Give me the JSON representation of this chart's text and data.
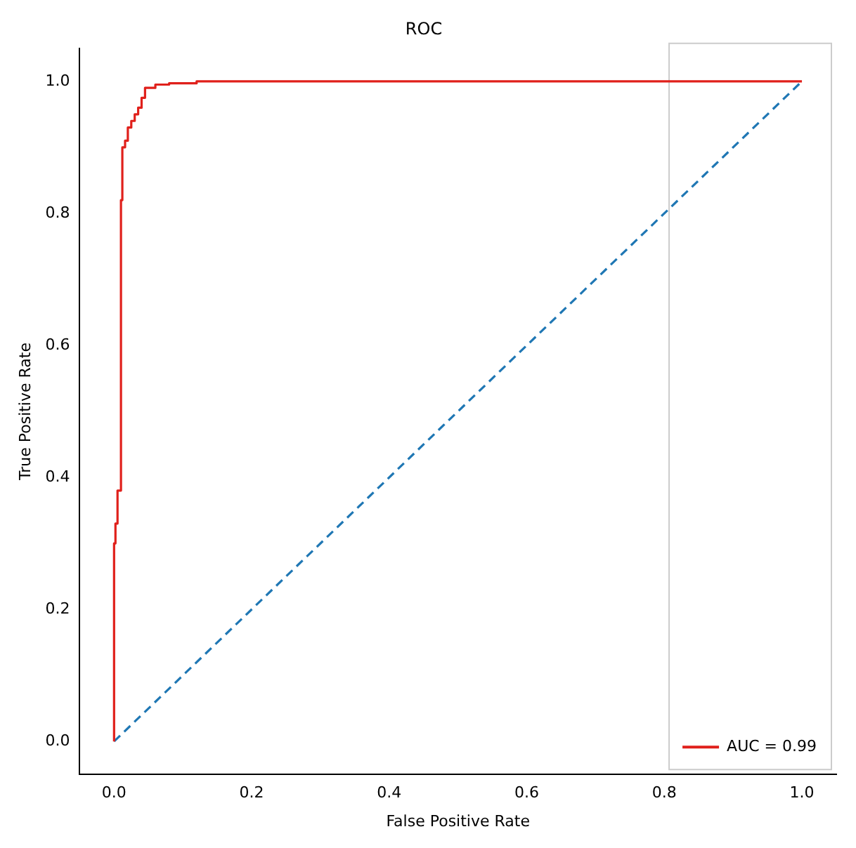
{
  "chart_data": {
    "type": "line",
    "title": "ROC",
    "xlabel": "False Positive Rate",
    "ylabel": "True Positive Rate",
    "xlim": [
      -0.05,
      1.05
    ],
    "ylim": [
      -0.05,
      1.05
    ],
    "xticks": [
      {
        "value": 0,
        "label": "0.0"
      },
      {
        "value": 0.2,
        "label": "0.2"
      },
      {
        "value": 0.4,
        "label": "0.4"
      },
      {
        "value": 0.6,
        "label": "0.6"
      },
      {
        "value": 0.8,
        "label": "0.8"
      },
      {
        "value": 1,
        "label": "1.0"
      }
    ],
    "yticks": [
      {
        "value": 0,
        "label": "0.0"
      },
      {
        "value": 0.2,
        "label": "0.2"
      },
      {
        "value": 0.4,
        "label": "0.4"
      },
      {
        "value": 0.6,
        "label": "0.6"
      },
      {
        "value": 0.8,
        "label": "0.8"
      },
      {
        "value": 1,
        "label": "1.0"
      }
    ],
    "grid": false,
    "legend": "bottom right",
    "marker": "none",
    "series": [
      {
        "name": "AUC = 0.99",
        "color": "#e0201b",
        "line_style": "solid",
        "x": [
          0,
          0,
          0.002,
          0.002,
          0.005,
          0.005,
          0.01,
          0.01,
          0.012,
          0.012,
          0.016,
          0.016,
          0.02,
          0.02,
          0.025,
          0.025,
          0.03,
          0.03,
          0.035,
          0.035,
          0.04,
          0.04,
          0.045,
          0.045,
          0.06,
          0.06,
          0.08,
          0.08,
          0.12,
          0.12,
          1
        ],
        "values": [
          0,
          0.3,
          0.3,
          0.33,
          0.33,
          0.38,
          0.38,
          0.82,
          0.82,
          0.9,
          0.9,
          0.91,
          0.91,
          0.93,
          0.93,
          0.94,
          0.94,
          0.95,
          0.95,
          0.96,
          0.96,
          0.975,
          0.975,
          0.99,
          0.99,
          0.995,
          0.995,
          0.997,
          0.997,
          1,
          1
        ]
      },
      {
        "color": "#1f77b4",
        "line_style": "dashed",
        "x": [
          0,
          1
        ],
        "values": [
          0,
          1
        ]
      }
    ]
  }
}
